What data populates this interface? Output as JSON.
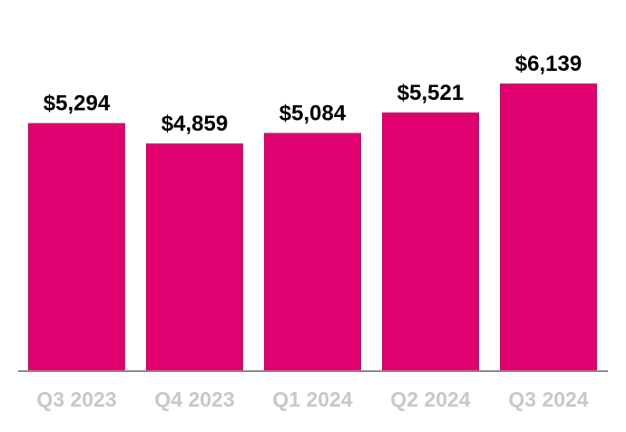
{
  "chart_data": {
    "type": "bar",
    "categories": [
      "Q3 2023",
      "Q4 2023",
      "Q1 2024",
      "Q2 2024",
      "Q3 2024"
    ],
    "values": [
      5294,
      4859,
      5084,
      5521,
      6139
    ],
    "data_labels": [
      "$5,294",
      "$4,859",
      "$5,084",
      "$5,521",
      "$6,139"
    ],
    "title": "",
    "xlabel": "",
    "ylabel": "",
    "ylim": [
      0,
      6139
    ],
    "grid": false,
    "legend": "none",
    "bar_color": "#e0006f",
    "axis_color": "#8c8c8c",
    "label_color": "#000000",
    "tick_color": "#c8c8c8"
  }
}
